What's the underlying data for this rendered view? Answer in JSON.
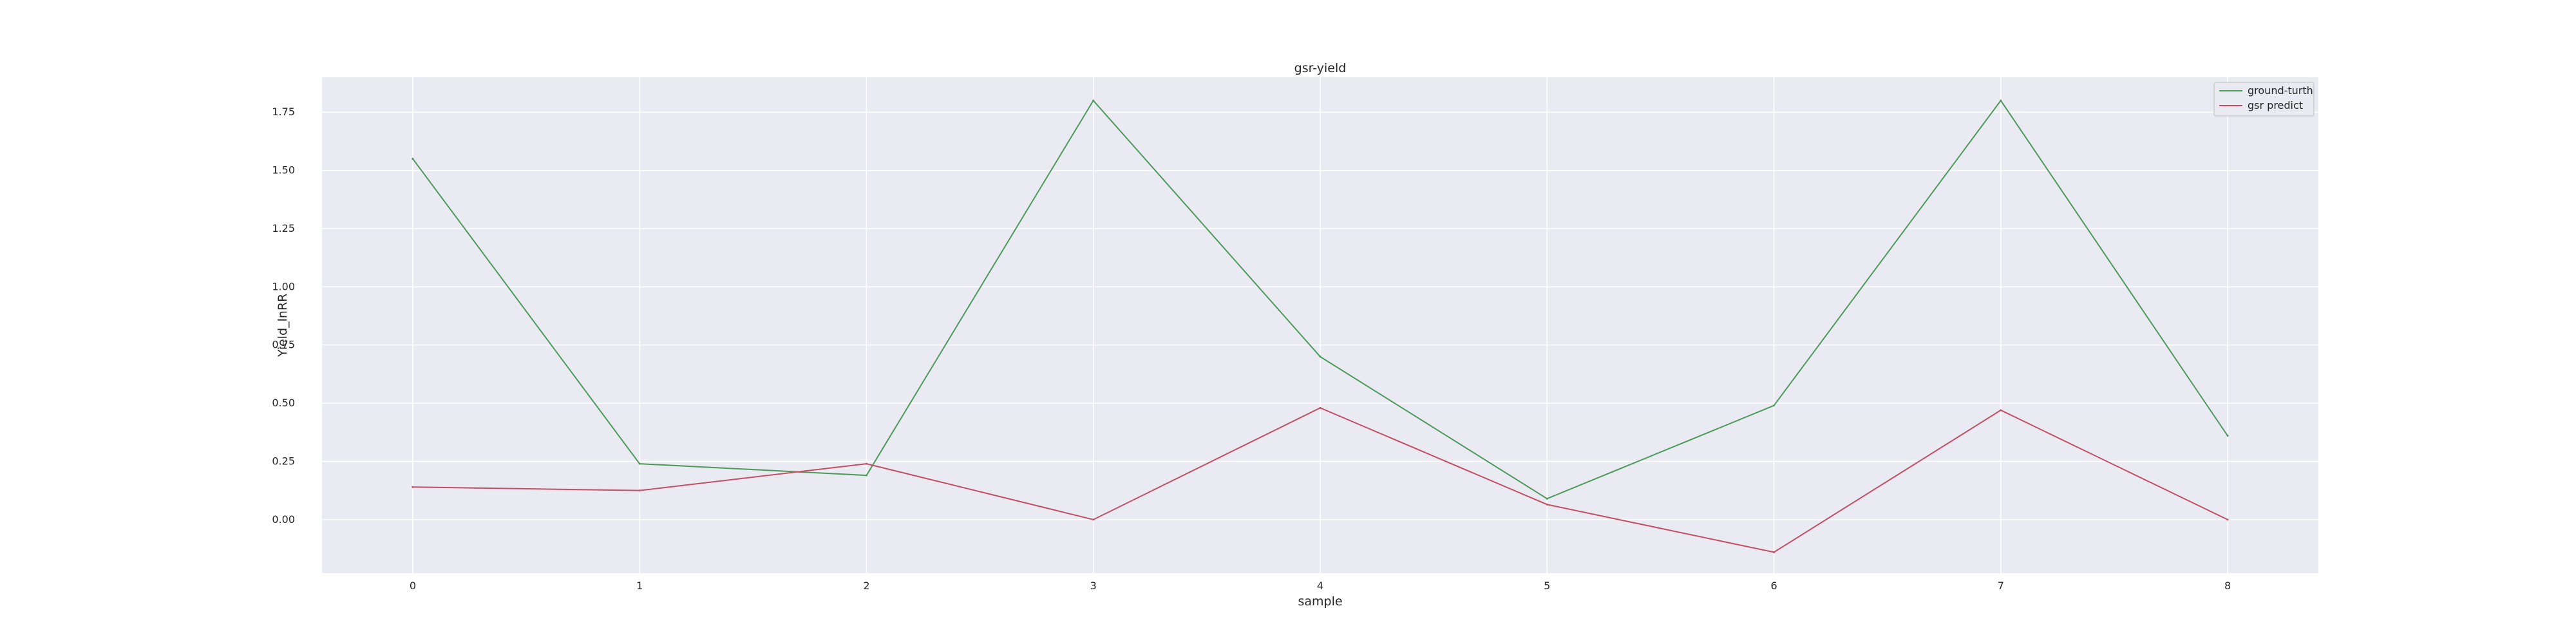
{
  "chart_data": {
    "type": "line",
    "title": "gsr-yield",
    "xlabel": "sample",
    "ylabel": "Yield_lnRR",
    "x": [
      0,
      1,
      2,
      3,
      4,
      5,
      6,
      7,
      8
    ],
    "xticks": [
      "0",
      "1",
      "2",
      "3",
      "4",
      "5",
      "6",
      "7",
      "8"
    ],
    "yticks": [
      "0.00",
      "0.25",
      "0.50",
      "0.75",
      "1.00",
      "1.25",
      "1.50",
      "1.75"
    ],
    "xlim": [
      -0.4,
      8.4
    ],
    "ylim": [
      -0.23,
      1.9
    ],
    "grid": true,
    "legend_position": "top-right",
    "background": "#eaeaf2",
    "series": [
      {
        "name": "ground-turth",
        "color": "#4c9a5a",
        "values": [
          1.55,
          0.24,
          0.19,
          1.8,
          0.7,
          0.09,
          0.49,
          1.8,
          0.36
        ]
      },
      {
        "name": "gsr predict",
        "color": "#c44e62",
        "values": [
          0.14,
          0.125,
          0.24,
          0.0,
          0.48,
          0.065,
          -0.14,
          0.47,
          0.0
        ]
      }
    ]
  }
}
